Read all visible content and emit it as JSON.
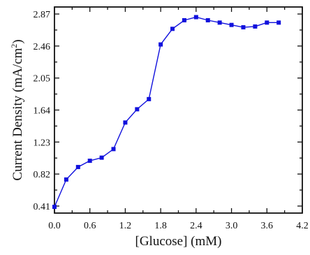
{
  "chart_data": {
    "type": "line",
    "xlabel": "[Glucose] (mM)",
    "ylabel_parts": {
      "main": "Current Density (mA/cm",
      "sup": "2",
      "end": ")"
    },
    "xlim": [
      0.0,
      4.2
    ],
    "ylim": [
      0.32,
      2.96
    ],
    "x_ticks": [
      0.0,
      0.6,
      1.2,
      1.8,
      2.4,
      3.0,
      3.6,
      4.2
    ],
    "x_tick_labels": [
      "0.0",
      "0.6",
      "1.2",
      "1.8",
      "2.4",
      "3.0",
      "3.6",
      "4.2"
    ],
    "y_ticks": [
      0.41,
      0.82,
      1.23,
      1.64,
      2.05,
      2.46,
      2.87
    ],
    "y_tick_labels": [
      "0.41",
      "0.82",
      "1.23",
      "1.64",
      "2.05",
      "2.46",
      "2.87"
    ],
    "x_minor_ticks": [
      0.3,
      0.9,
      1.5,
      2.1,
      2.7,
      3.3,
      3.9
    ],
    "y_minor_ticks": [
      0.615,
      1.025,
      1.435,
      1.845,
      2.255,
      2.665
    ],
    "grid": false,
    "series": [
      {
        "color": "#1111dd",
        "marker": "square",
        "x": [
          0.0,
          0.2,
          0.4,
          0.6,
          0.8,
          1.0,
          1.2,
          1.4,
          1.6,
          1.8,
          2.0,
          2.2,
          2.4,
          2.6,
          2.8,
          3.0,
          3.2,
          3.4,
          3.6,
          3.8
        ],
        "y": [
          0.4,
          0.75,
          0.91,
          0.99,
          1.03,
          1.14,
          1.48,
          1.65,
          1.78,
          2.48,
          2.68,
          2.79,
          2.83,
          2.79,
          2.76,
          2.73,
          2.7,
          2.71,
          2.76,
          2.76
        ]
      }
    ]
  }
}
